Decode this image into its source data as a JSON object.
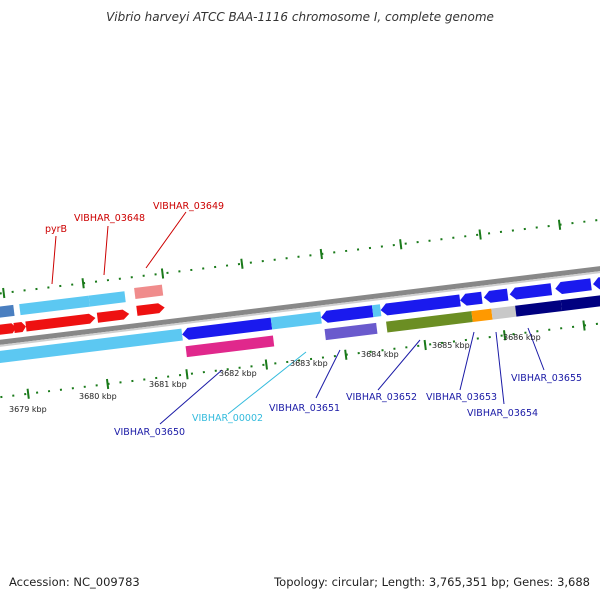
{
  "header": {
    "title": "Vibrio harveyi ATCC BAA-1116 chromosome I, complete genome"
  },
  "footer": {
    "accession": "Accession: NC_009783",
    "stats": "Topology: circular; Length: 3,765,351 bp; Genes: 3,688"
  },
  "colors": {
    "forward_label": "#cc0000",
    "reverse_label": "#1a1aa6",
    "pseudo_label": "#33bbdd",
    "tick": "#1a7a1a"
  },
  "labels": {
    "pyrB": "pyrB",
    "VIBHAR_03648": "VIBHAR_03648",
    "VIBHAR_03649": "VIBHAR_03649",
    "VIBHAR_03650": "VIBHAR_03650",
    "VIBHAR_00002": "VIBHAR_00002",
    "VIBHAR_03651": "VIBHAR_03651",
    "VIBHAR_03652": "VIBHAR_03652",
    "VIBHAR_03653": "VIBHAR_03653",
    "VIBHAR_03654": "VIBHAR_03654",
    "VIBHAR_03655": "VIBHAR_03655"
  },
  "ticks": {
    "t3679": "3679 kbp",
    "t3680": "3680 kbp",
    "t3681": "3681 kbp",
    "t3682": "3682 kbp",
    "t3683": "3683 kbp",
    "t3684": "3684 kbp",
    "t3685": "3685 kbp",
    "t3686": "3686 kbp"
  }
}
